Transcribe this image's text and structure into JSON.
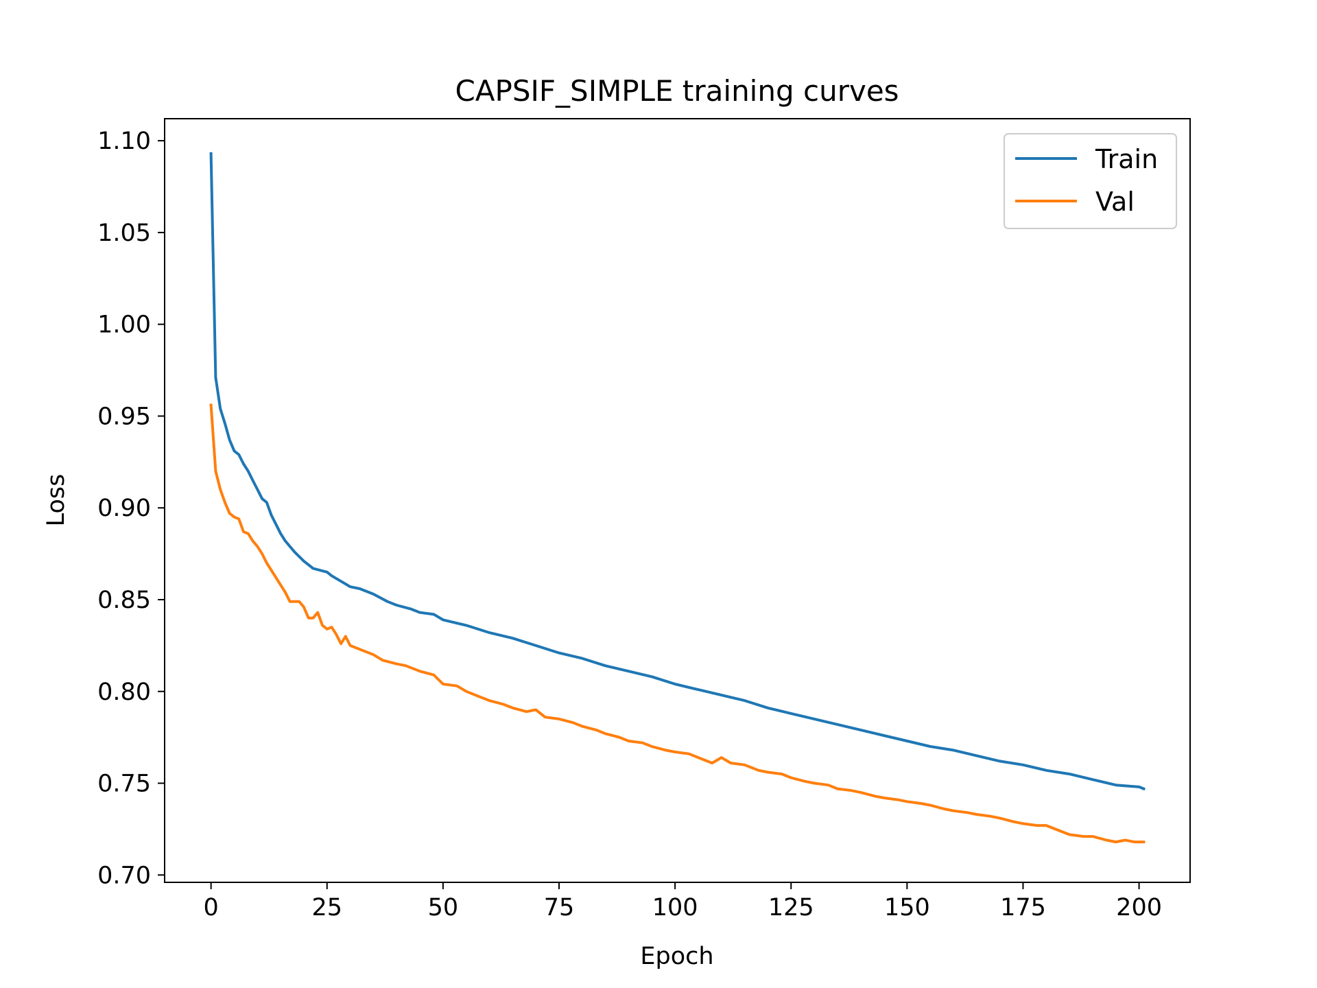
{
  "chart_data": {
    "type": "line",
    "title": "CAPSIF_SIMPLE training curves",
    "xlabel": "Epoch",
    "ylabel": "Loss",
    "xlim": [
      -10,
      211
    ],
    "ylim": [
      0.696,
      1.112
    ],
    "xticks": [
      0,
      25,
      50,
      75,
      100,
      125,
      150,
      175,
      200
    ],
    "yticks": [
      0.7,
      0.75,
      0.8,
      0.85,
      0.9,
      0.95,
      1.0,
      1.05,
      1.1
    ],
    "ytick_labels": [
      "0.70",
      "0.75",
      "0.80",
      "0.85",
      "0.90",
      "0.95",
      "1.00",
      "1.05",
      "1.10"
    ],
    "xtick_labels": [
      "0",
      "25",
      "50",
      "75",
      "100",
      "125",
      "150",
      "175",
      "200"
    ],
    "grid": false,
    "legend_position": "top-right",
    "series": [
      {
        "name": "Train",
        "color": "#1f77b4",
        "points": [
          [
            0,
            1.093
          ],
          [
            1,
            0.971
          ],
          [
            2,
            0.954
          ],
          [
            3,
            0.946
          ],
          [
            4,
            0.937
          ],
          [
            5,
            0.931
          ],
          [
            6,
            0.929
          ],
          [
            7,
            0.924
          ],
          [
            8,
            0.92
          ],
          [
            9,
            0.915
          ],
          [
            10,
            0.91
          ],
          [
            11,
            0.905
          ],
          [
            12,
            0.903
          ],
          [
            13,
            0.896
          ],
          [
            14,
            0.891
          ],
          [
            15,
            0.886
          ],
          [
            16,
            0.882
          ],
          [
            17,
            0.879
          ],
          [
            18,
            0.876
          ],
          [
            20,
            0.871
          ],
          [
            22,
            0.867
          ],
          [
            25,
            0.865
          ],
          [
            26,
            0.863
          ],
          [
            28,
            0.86
          ],
          [
            30,
            0.857
          ],
          [
            32,
            0.856
          ],
          [
            35,
            0.853
          ],
          [
            38,
            0.849
          ],
          [
            40,
            0.847
          ],
          [
            43,
            0.845
          ],
          [
            45,
            0.843
          ],
          [
            48,
            0.842
          ],
          [
            50,
            0.839
          ],
          [
            55,
            0.836
          ],
          [
            60,
            0.832
          ],
          [
            65,
            0.829
          ],
          [
            70,
            0.825
          ],
          [
            75,
            0.821
          ],
          [
            80,
            0.818
          ],
          [
            85,
            0.814
          ],
          [
            90,
            0.811
          ],
          [
            95,
            0.808
          ],
          [
            100,
            0.804
          ],
          [
            105,
            0.801
          ],
          [
            110,
            0.798
          ],
          [
            115,
            0.795
          ],
          [
            120,
            0.791
          ],
          [
            125,
            0.788
          ],
          [
            130,
            0.785
          ],
          [
            135,
            0.782
          ],
          [
            140,
            0.779
          ],
          [
            145,
            0.776
          ],
          [
            150,
            0.773
          ],
          [
            155,
            0.77
          ],
          [
            160,
            0.768
          ],
          [
            165,
            0.765
          ],
          [
            170,
            0.762
          ],
          [
            175,
            0.76
          ],
          [
            180,
            0.757
          ],
          [
            185,
            0.755
          ],
          [
            190,
            0.752
          ],
          [
            195,
            0.749
          ],
          [
            200,
            0.748
          ],
          [
            201,
            0.747
          ]
        ]
      },
      {
        "name": "Val",
        "color": "#ff7f0e",
        "points": [
          [
            0,
            0.956
          ],
          [
            1,
            0.92
          ],
          [
            2,
            0.91
          ],
          [
            3,
            0.903
          ],
          [
            4,
            0.897
          ],
          [
            5,
            0.895
          ],
          [
            6,
            0.894
          ],
          [
            7,
            0.887
          ],
          [
            8,
            0.886
          ],
          [
            9,
            0.882
          ],
          [
            10,
            0.879
          ],
          [
            11,
            0.875
          ],
          [
            12,
            0.87
          ],
          [
            13,
            0.866
          ],
          [
            14,
            0.862
          ],
          [
            15,
            0.858
          ],
          [
            16,
            0.854
          ],
          [
            17,
            0.849
          ],
          [
            19,
            0.849
          ],
          [
            20,
            0.846
          ],
          [
            21,
            0.84
          ],
          [
            22,
            0.84
          ],
          [
            23,
            0.843
          ],
          [
            24,
            0.836
          ],
          [
            25,
            0.834
          ],
          [
            26,
            0.835
          ],
          [
            27,
            0.831
          ],
          [
            28,
            0.826
          ],
          [
            29,
            0.83
          ],
          [
            30,
            0.825
          ],
          [
            32,
            0.823
          ],
          [
            35,
            0.82
          ],
          [
            37,
            0.817
          ],
          [
            40,
            0.815
          ],
          [
            42,
            0.814
          ],
          [
            45,
            0.811
          ],
          [
            48,
            0.809
          ],
          [
            50,
            0.804
          ],
          [
            53,
            0.803
          ],
          [
            55,
            0.8
          ],
          [
            58,
            0.797
          ],
          [
            60,
            0.795
          ],
          [
            63,
            0.793
          ],
          [
            65,
            0.791
          ],
          [
            68,
            0.789
          ],
          [
            70,
            0.79
          ],
          [
            72,
            0.786
          ],
          [
            75,
            0.785
          ],
          [
            78,
            0.783
          ],
          [
            80,
            0.781
          ],
          [
            83,
            0.779
          ],
          [
            85,
            0.777
          ],
          [
            88,
            0.775
          ],
          [
            90,
            0.773
          ],
          [
            93,
            0.772
          ],
          [
            95,
            0.77
          ],
          [
            98,
            0.768
          ],
          [
            100,
            0.767
          ],
          [
            103,
            0.766
          ],
          [
            105,
            0.764
          ],
          [
            108,
            0.761
          ],
          [
            110,
            0.764
          ],
          [
            112,
            0.761
          ],
          [
            115,
            0.76
          ],
          [
            118,
            0.757
          ],
          [
            120,
            0.756
          ],
          [
            123,
            0.755
          ],
          [
            125,
            0.753
          ],
          [
            128,
            0.751
          ],
          [
            130,
            0.75
          ],
          [
            133,
            0.749
          ],
          [
            135,
            0.747
          ],
          [
            138,
            0.746
          ],
          [
            140,
            0.745
          ],
          [
            143,
            0.743
          ],
          [
            145,
            0.742
          ],
          [
            148,
            0.741
          ],
          [
            150,
            0.74
          ],
          [
            153,
            0.739
          ],
          [
            155,
            0.738
          ],
          [
            158,
            0.736
          ],
          [
            160,
            0.735
          ],
          [
            163,
            0.734
          ],
          [
            165,
            0.733
          ],
          [
            168,
            0.732
          ],
          [
            170,
            0.731
          ],
          [
            173,
            0.729
          ],
          [
            175,
            0.728
          ],
          [
            178,
            0.727
          ],
          [
            180,
            0.727
          ],
          [
            183,
            0.724
          ],
          [
            185,
            0.722
          ],
          [
            188,
            0.721
          ],
          [
            190,
            0.721
          ],
          [
            193,
            0.719
          ],
          [
            195,
            0.718
          ],
          [
            197,
            0.719
          ],
          [
            199,
            0.718
          ],
          [
            201,
            0.718
          ]
        ]
      }
    ]
  }
}
